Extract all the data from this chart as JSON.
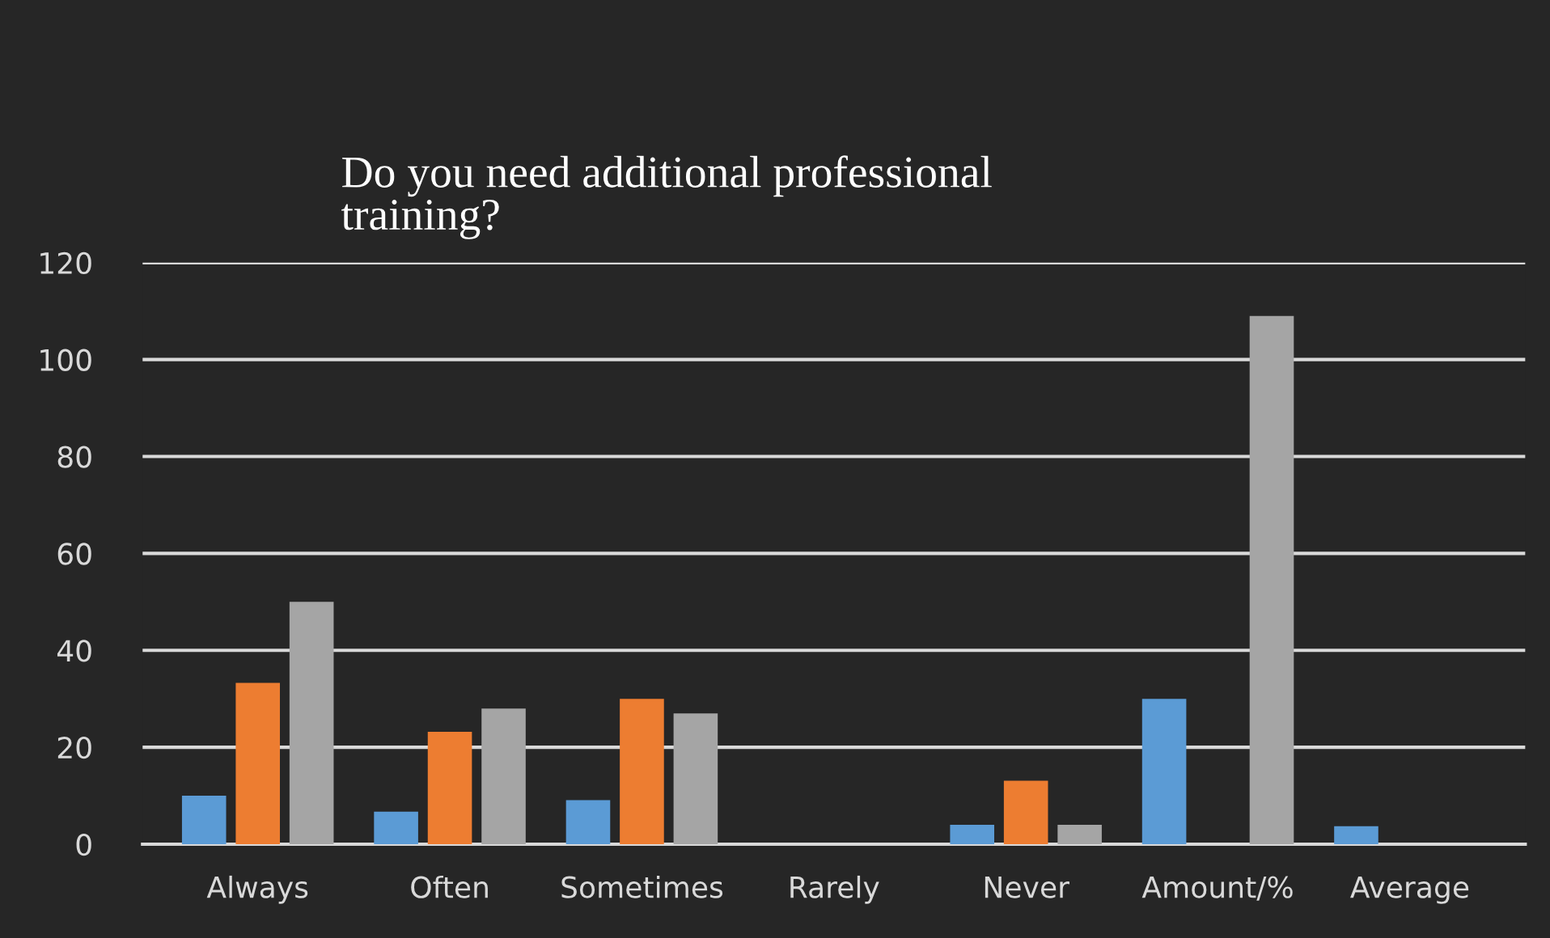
{
  "chart_data": {
    "type": "bar",
    "title": "Do you need additional professional\ntraining?",
    "categories": [
      "Always",
      "Often",
      "Sometimes",
      "Rarely",
      "Never",
      "Amount/%",
      "Average"
    ],
    "series": [
      {
        "color": "#5b9bd5",
        "values": [
          10,
          6.7,
          9.1,
          0,
          4,
          30,
          3.7
        ]
      },
      {
        "color": "#ed7d31",
        "values": [
          33.3,
          23.2,
          30,
          0,
          13.1,
          null,
          null
        ]
      },
      {
        "color": "#a5a5a5",
        "values": [
          50,
          28,
          27,
          0,
          4,
          109,
          null
        ]
      }
    ],
    "ylim": [
      0,
      120
    ],
    "yticks": [
      0,
      20,
      40,
      60,
      80,
      100,
      120
    ],
    "grid": "y",
    "legend": false
  }
}
